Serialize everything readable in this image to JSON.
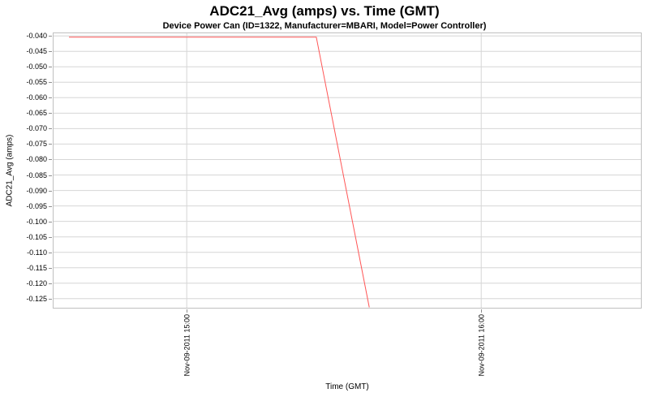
{
  "page": {
    "background": "#ffffff"
  },
  "chart_data": {
    "type": "line",
    "title": "ADC21_Avg (amps) vs. Time (GMT)",
    "subtitle": "Device Power Can (ID=1322, Manufacturer=MBARI, Model=Power Controller)",
    "xlabel": "Time (GMT)",
    "ylabel": "ADC21_Avg (amps)",
    "legend": "none",
    "grid": true,
    "series": [
      {
        "name": "ADC21_Avg",
        "color": "#ff5555",
        "points": [
          {
            "time": "Nov-09-2011 14:36",
            "minutes": 876,
            "value": -0.0404
          },
          {
            "time": "Nov-09-2011 15:26",
            "minutes": 926.4,
            "value": -0.0404
          },
          {
            "time": "Nov-09-2011 15:37",
            "minutes": 937.2,
            "value": -0.1278
          }
        ]
      }
    ],
    "x_axis": {
      "range_minutes": [
        872.7,
        992.7
      ],
      "ticks": [
        {
          "label": "Nov-09-2011 15:00",
          "minutes": 900
        },
        {
          "label": "Nov-09-2011 16:00",
          "minutes": 960
        }
      ]
    },
    "y_axis": {
      "range": [
        -0.1282,
        -0.0389
      ],
      "ticks": [
        {
          "label": "-0.040",
          "value": -0.04
        },
        {
          "label": "-0.045",
          "value": -0.045
        },
        {
          "label": "-0.050",
          "value": -0.05
        },
        {
          "label": "-0.055",
          "value": -0.055
        },
        {
          "label": "-0.060",
          "value": -0.06
        },
        {
          "label": "-0.065",
          "value": -0.065
        },
        {
          "label": "-0.070",
          "value": -0.07
        },
        {
          "label": "-0.075",
          "value": -0.075
        },
        {
          "label": "-0.080",
          "value": -0.08
        },
        {
          "label": "-0.085",
          "value": -0.085
        },
        {
          "label": "-0.090",
          "value": -0.09
        },
        {
          "label": "-0.095",
          "value": -0.095
        },
        {
          "label": "-0.100",
          "value": -0.1
        },
        {
          "label": "-0.105",
          "value": -0.105
        },
        {
          "label": "-0.110",
          "value": -0.11
        },
        {
          "label": "-0.115",
          "value": -0.115
        },
        {
          "label": "-0.120",
          "value": -0.12
        },
        {
          "label": "-0.125",
          "value": -0.125
        }
      ]
    },
    "styles": {
      "grid_color": "#d6d6d6",
      "outline_color": "#c0c0c0",
      "tick_mark_color": "#8f8f8f",
      "text_color": "#000000",
      "plot_background": "#ffffff"
    }
  }
}
